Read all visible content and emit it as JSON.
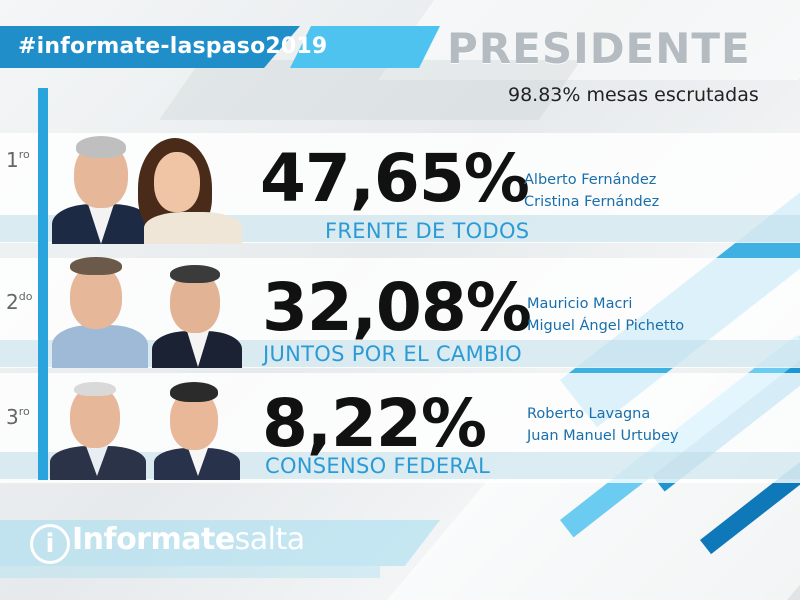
{
  "header": {
    "hashtag": "#informate-laspaso2019",
    "title": "PRESIDENTE",
    "scrutiny": "98.83% mesas escrutadas"
  },
  "results": [
    {
      "rank_number": "1",
      "rank_suffix": "ro",
      "percentage": "47,65%",
      "candidates": [
        "Alberto Fernández",
        "Cristina Fernández"
      ],
      "party": "FRENTE DE TODOS"
    },
    {
      "rank_number": "2",
      "rank_suffix": "do",
      "percentage": "32,08%",
      "candidates": [
        "Mauricio Macri",
        "Miguel Ángel Pichetto"
      ],
      "party": "JUNTOS POR EL CAMBIO"
    },
    {
      "rank_number": "3",
      "rank_suffix": "ro",
      "percentage": "8,22%",
      "candidates": [
        "Roberto Lavagna",
        "Juan Manuel Urtubey"
      ],
      "party": "CONSENSO FEDERAL"
    }
  ],
  "footer": {
    "logo_icon": "i",
    "logo_bold": "Informate",
    "logo_light": "salta"
  },
  "colors": {
    "accent": "#1f8ec9",
    "light_accent": "#4fc3ef",
    "party_text": "#2c9bd5",
    "candidate_text": "#1a6fab"
  }
}
